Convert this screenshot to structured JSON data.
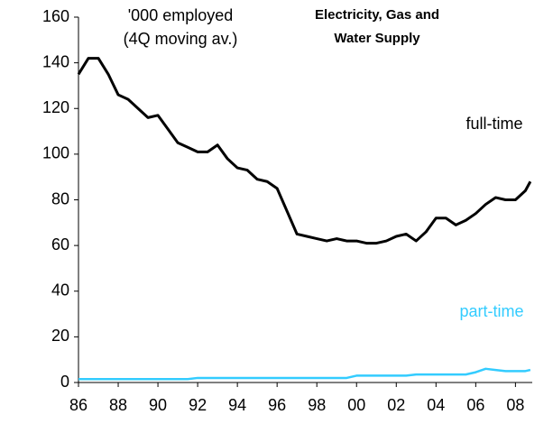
{
  "chart_data": {
    "type": "line",
    "title": [
      "Electricity, Gas and",
      "Water Supply"
    ],
    "y_label": [
      "'000 employed",
      "(4Q moving av.)"
    ],
    "x": [
      1986,
      1986.5,
      1987,
      1987.5,
      1988,
      1988.5,
      1989,
      1989.5,
      1990,
      1990.5,
      1991,
      1991.5,
      1992,
      1992.5,
      1993,
      1993.5,
      1994,
      1994.5,
      1995,
      1995.5,
      1996,
      1996.5,
      1997,
      1997.5,
      1998,
      1998.5,
      1999,
      1999.5,
      2000,
      2000.5,
      2001,
      2001.5,
      2002,
      2002.5,
      2003,
      2003.5,
      2004,
      2004.5,
      2005,
      2005.5,
      2006,
      2006.5,
      2007,
      2007.5,
      2008,
      2008.5,
      2008.75
    ],
    "series": [
      {
        "name": "full-time",
        "color": "#000000",
        "values": [
          135,
          142,
          142,
          135,
          126,
          124,
          120,
          116,
          117,
          111,
          105,
          103,
          101,
          101,
          104,
          98,
          94,
          93,
          89,
          88,
          85,
          75,
          65,
          64,
          63,
          62,
          63,
          62,
          62,
          61,
          61,
          62,
          64,
          65,
          62,
          66,
          72,
          72,
          69,
          71,
          74,
          78,
          81,
          80,
          80,
          84,
          88
        ]
      },
      {
        "name": "part-time",
        "color": "#33ccff",
        "values": [
          1.5,
          1.5,
          1.5,
          1.5,
          1.5,
          1.5,
          1.5,
          1.5,
          1.5,
          1.5,
          1.5,
          1.5,
          2,
          2,
          2,
          2,
          2,
          2,
          2,
          2,
          2,
          2,
          2,
          2,
          2,
          2,
          2,
          2,
          3,
          3,
          3,
          3,
          3,
          3,
          3.5,
          3.5,
          3.5,
          3.5,
          3.5,
          3.5,
          4.5,
          6,
          5.5,
          5,
          5,
          5,
          5.5
        ]
      }
    ],
    "xlim": [
      1986,
      2009.3
    ],
    "xticks": [
      {
        "value": 1986,
        "label": "86"
      },
      {
        "value": 1988,
        "label": "88"
      },
      {
        "value": 1990,
        "label": "90"
      },
      {
        "value": 1992,
        "label": "92"
      },
      {
        "value": 1994,
        "label": "94"
      },
      {
        "value": 1996,
        "label": "96"
      },
      {
        "value": 1998,
        "label": "98"
      },
      {
        "value": 2000,
        "label": "00"
      },
      {
        "value": 2002,
        "label": "02"
      },
      {
        "value": 2004,
        "label": "04"
      },
      {
        "value": 2006,
        "label": "06"
      },
      {
        "value": 2008,
        "label": "08"
      }
    ],
    "ylim": [
      0,
      160
    ],
    "yticks": [
      0,
      20,
      40,
      60,
      80,
      100,
      120,
      140,
      160
    ],
    "grid": false
  }
}
